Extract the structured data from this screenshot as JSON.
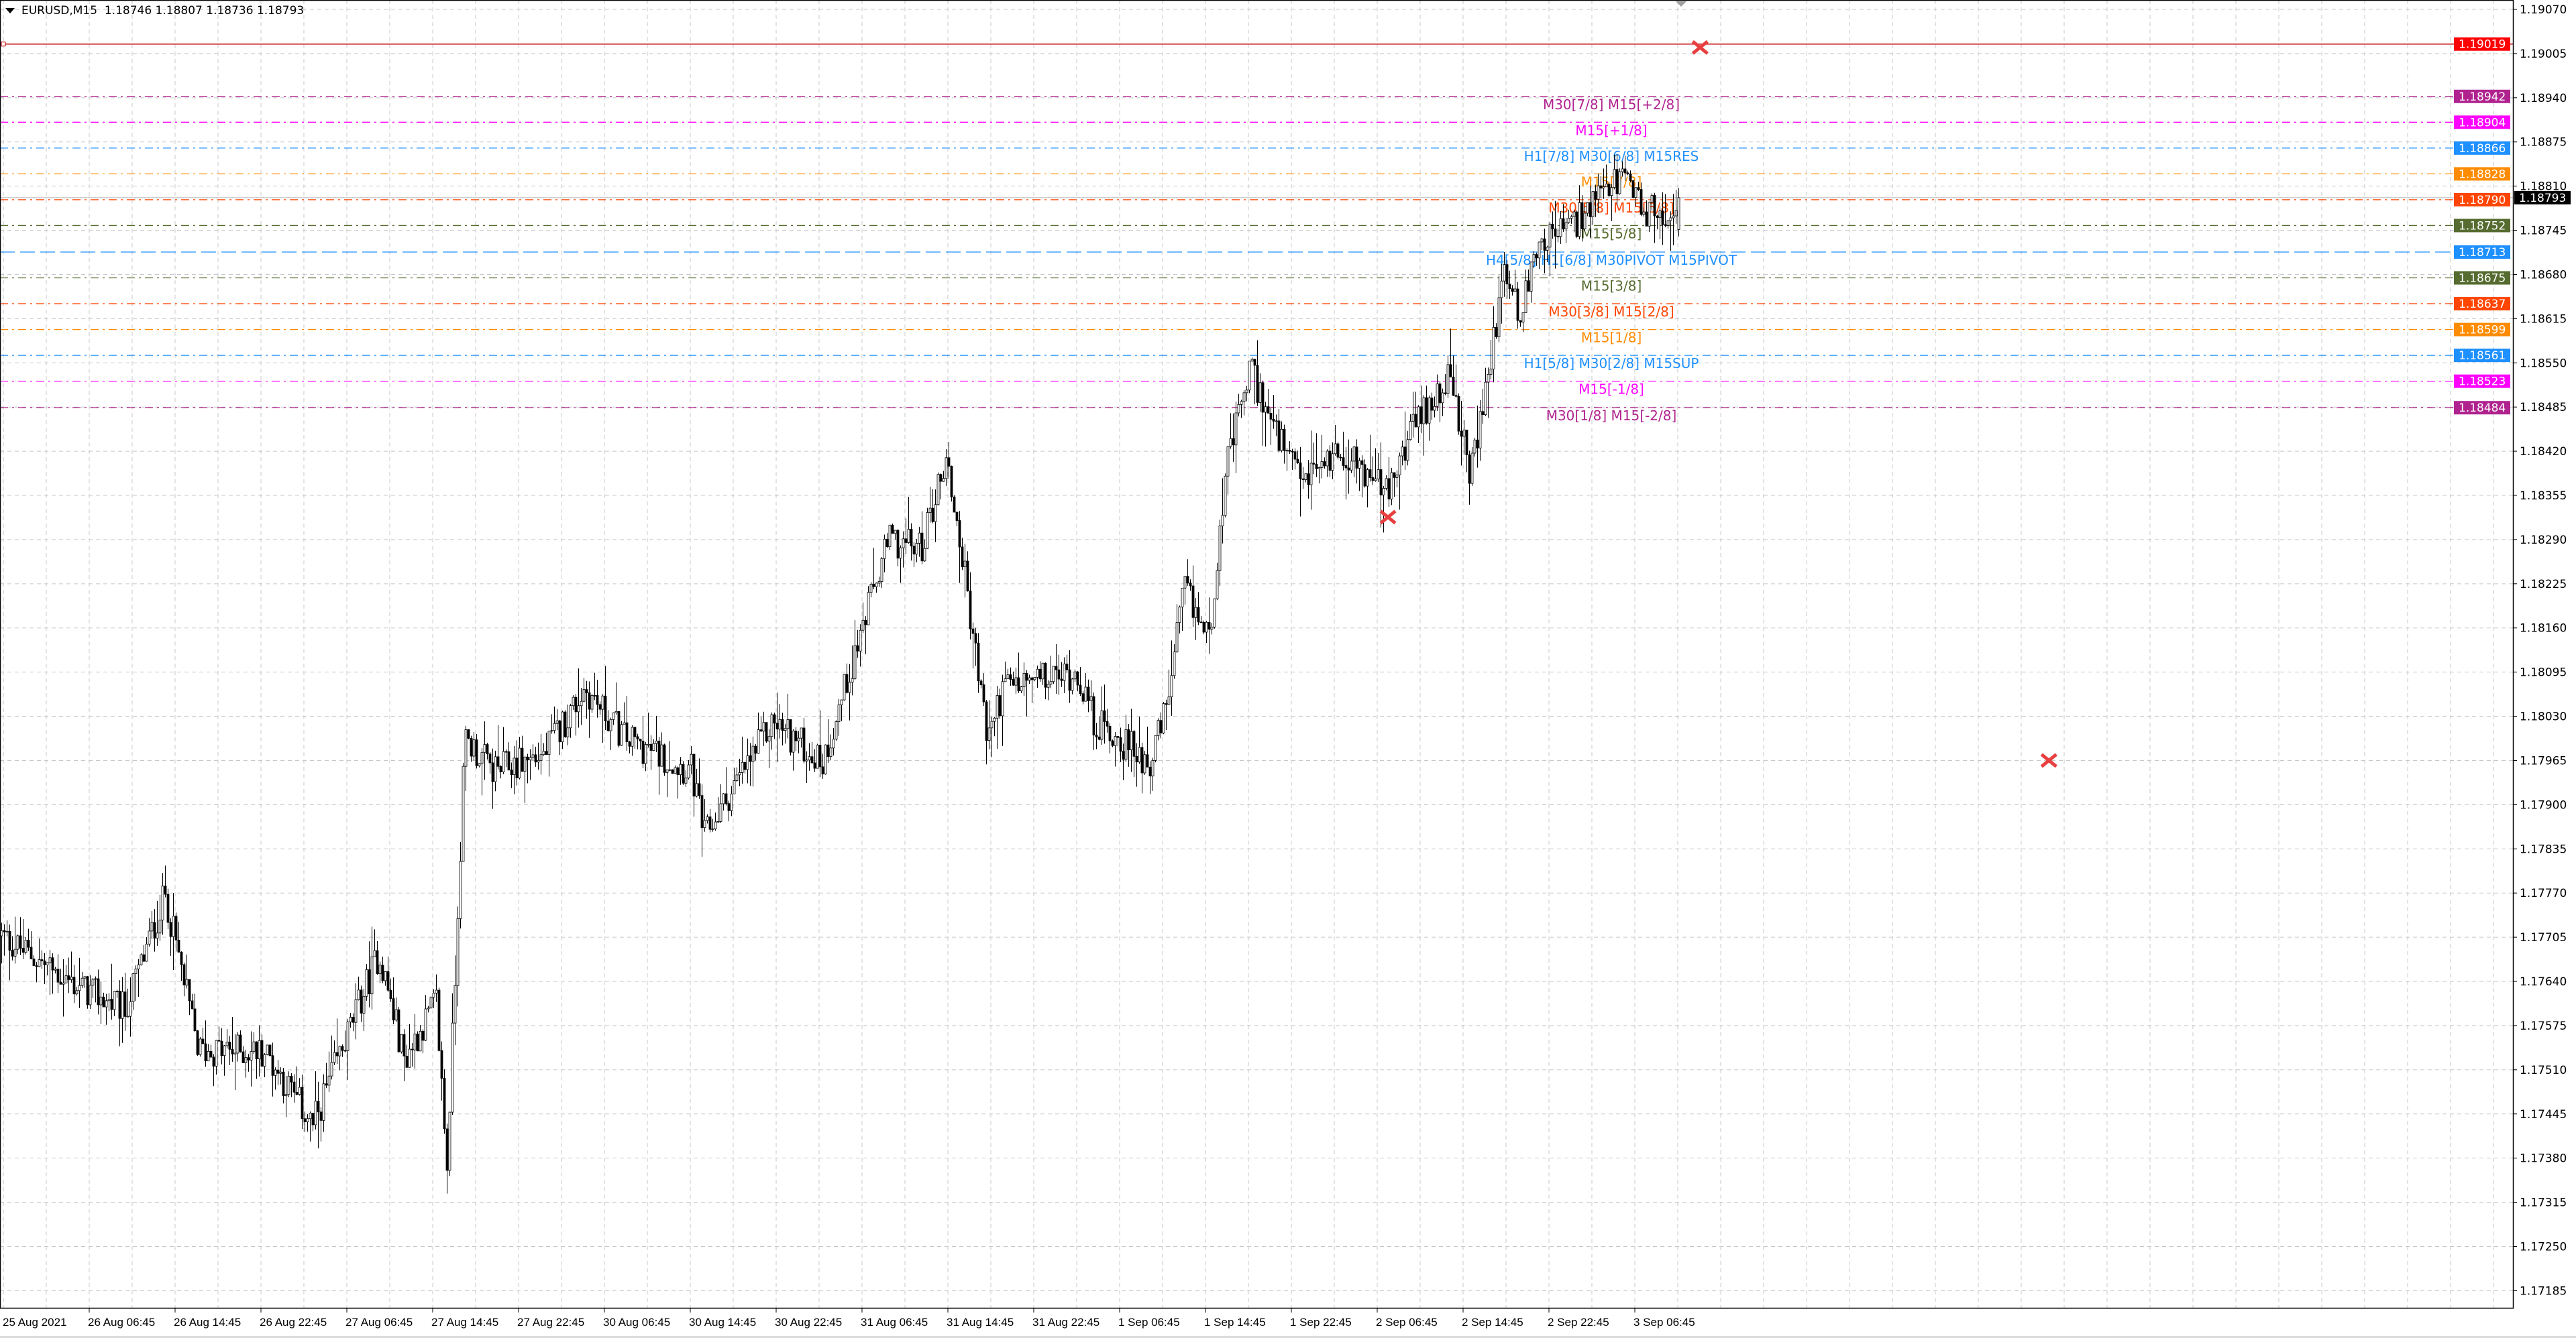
{
  "header": {
    "symbol_timeframe": "EURUSD,M15",
    "ohlc": "1.18746 1.18807 1.18736 1.18793"
  },
  "chart_data": {
    "type": "candlestick",
    "symbol": "EURUSD",
    "timeframe": "M15",
    "last_bar": {
      "open": 1.18746,
      "high": 1.18807,
      "low": 1.18736,
      "close": 1.18793
    },
    "ylim": [
      1.1715,
      1.19085
    ],
    "grid": true,
    "y_ticks": [
      "1.19070",
      "1.19005",
      "1.18940",
      "1.18875",
      "1.18810",
      "1.18745",
      "1.18680",
      "1.18615",
      "1.18550",
      "1.18485",
      "1.18420",
      "1.18355",
      "1.18290",
      "1.18225",
      "1.18160",
      "1.18095",
      "1.18030",
      "1.17965",
      "1.17900",
      "1.17835",
      "1.17770",
      "1.17705",
      "1.17640",
      "1.17575",
      "1.17510",
      "1.17445",
      "1.17380",
      "1.17315",
      "1.17250",
      "1.17185"
    ],
    "x_ticks": [
      "25 Aug 2021",
      "26 Aug 06:45",
      "26 Aug 14:45",
      "26 Aug 22:45",
      "27 Aug 06:45",
      "27 Aug 14:45",
      "27 Aug 22:45",
      "30 Aug 06:45",
      "30 Aug 14:45",
      "30 Aug 22:45",
      "31 Aug 06:45",
      "31 Aug 14:45",
      "31 Aug 22:45",
      "1 Sep 06:45",
      "1 Sep 14:45",
      "1 Sep 22:45",
      "2 Sep 06:45",
      "2 Sep 14:45",
      "2 Sep 22:45",
      "3 Sep 06:45"
    ],
    "price_path": [
      [
        "25 Aug 22:30",
        1.17707
      ],
      [
        "26 Aug 05:20",
        1.17635
      ],
      [
        "26 Aug 10:00",
        1.17598
      ],
      [
        "26 Aug 13:45",
        1.17768
      ],
      [
        "26 Aug 16:50",
        1.17538
      ],
      [
        "26 Aug 23:00",
        1.17538
      ],
      [
        "27 Aug 03:30",
        1.17429
      ],
      [
        "27 Aug 09:40",
        1.17683
      ],
      [
        "27 Aug 12:00",
        1.17526
      ],
      [
        "27 Aug 15:00",
        1.1761
      ],
      [
        "27 Aug 16:00",
        1.17368
      ],
      [
        "27 Aug 17:40",
        1.17998
      ],
      [
        "27 Aug 20:20",
        1.1795
      ],
      [
        "30 Aug 01:00",
        1.17974
      ],
      [
        "30 Aug 04:50",
        1.18071
      ],
      [
        "30 Aug 08:35",
        1.17998
      ],
      [
        "30 Aug 14:45",
        1.1795
      ],
      [
        "30 Aug 16:00",
        1.17853
      ],
      [
        "30 Aug 22:25",
        1.18023
      ],
      [
        "31 Aug 03:00",
        1.17962
      ],
      [
        "31 Aug 06:50",
        1.18168
      ],
      [
        "31 Aug 09:10",
        1.18289
      ],
      [
        "31 Aug 12:10",
        1.18277
      ],
      [
        "31 Aug 14:30",
        1.18411
      ],
      [
        "31 Aug 16:00",
        1.18265
      ],
      [
        "31 Aug 18:20",
        1.17998
      ],
      [
        "31 Aug 19:50",
        1.18071
      ],
      [
        "1 Sep 02:45",
        1.18095
      ],
      [
        "1 Sep 04:15",
        1.18023
      ],
      [
        "1 Sep 09:35",
        1.17962
      ],
      [
        "1 Sep 11:05",
        1.18047
      ],
      [
        "1 Sep 12:40",
        1.18217
      ],
      [
        "1 Sep 15:00",
        1.18144
      ],
      [
        "1 Sep 16:30",
        1.18386
      ],
      [
        "1 Sep 18:50",
        1.18544
      ],
      [
        "1 Sep 21:10",
        1.18447
      ],
      [
        "1 Sep 23:25",
        1.18374
      ],
      [
        "2 Sep 03:15",
        1.18423
      ],
      [
        "2 Sep 07:50",
        1.18357
      ],
      [
        "2 Sep 09:20",
        1.18435
      ],
      [
        "2 Sep 13:10",
        1.18532
      ],
      [
        "2 Sep 15:25",
        1.18386
      ],
      [
        "2 Sep 17:00",
        1.18532
      ],
      [
        "2 Sep 18:30",
        1.1869
      ],
      [
        "2 Sep 20:05",
        1.18617
      ],
      [
        "2 Sep 21:35",
        1.18731
      ],
      [
        "3 Sep 00:40",
        1.1875
      ],
      [
        "3 Sep 03:15",
        1.18787
      ],
      [
        "3 Sep 05:15",
        1.18823
      ],
      [
        "3 Sep 07:30",
        1.18774
      ],
      [
        "3 Sep 09:45",
        1.18767
      ],
      [
        "3 Sep 10:45",
        1.18793
      ]
    ],
    "current_price": {
      "value": 1.18793,
      "label": "1.18793",
      "color": "#000000"
    },
    "red_line": {
      "value": 1.19019,
      "label": "1.19019",
      "color": "#ff0000",
      "line_color": "#c00000"
    },
    "levels": [
      {
        "value": 1.18942,
        "price_label": "1.18942",
        "text": "M30[7/8] M15[+2/8]",
        "color": "#b0238f"
      },
      {
        "value": 1.18904,
        "price_label": "1.18904",
        "text": "M15[+1/8]",
        "color": "#ff00ff"
      },
      {
        "value": 1.18866,
        "price_label": "1.18866",
        "text": "H1[7/8] M30[6/8] M15RES",
        "color": "#1e90ff"
      },
      {
        "value": 1.18828,
        "price_label": "1.18828",
        "text": "M15[7/8]",
        "color": "#ff8c00"
      },
      {
        "value": 1.1879,
        "price_label": "1.18790",
        "text": "M30[5/8] M15[6/8]",
        "color": "#ff4500"
      },
      {
        "value": 1.18752,
        "price_label": "1.18752",
        "text": "M15[5/8]",
        "color": "#556b2f"
      },
      {
        "value": 1.18713,
        "price_label": "1.18713",
        "text": "H4[5/8] H1[6/8] M30PIVOT M15PIVOT",
        "color": "#1e90ff"
      },
      {
        "value": 1.18675,
        "price_label": "1.18675",
        "text": "M15[3/8]",
        "color": "#556b2f"
      },
      {
        "value": 1.18637,
        "price_label": "1.18637",
        "text": "M30[3/8] M15[2/8]",
        "color": "#ff4500"
      },
      {
        "value": 1.18599,
        "price_label": "1.18599",
        "text": "M15[1/8]",
        "color": "#ff8c00"
      },
      {
        "value": 1.18561,
        "price_label": "1.18561",
        "text": "H1[5/8] M30[2/8] M15SUP",
        "color": "#1e90ff"
      },
      {
        "value": 1.18523,
        "price_label": "1.18523",
        "text": "M15[-1/8]",
        "color": "#ff00ff"
      },
      {
        "value": 1.18484,
        "price_label": "1.18484",
        "text": "M30[1/8] M15[-2/8]",
        "color": "#b0238f"
      }
    ],
    "markers": [
      {
        "icon": "cross-icon",
        "time": "3 Sep 12:50",
        "value": 1.19014,
        "color": "#e84040"
      },
      {
        "icon": "cross-icon",
        "time": "2 Sep 07:45",
        "value": 1.18323,
        "color": "#e84040"
      },
      {
        "icon": "cross-icon",
        "time": "4 Sep 21:20",
        "value": 1.17965,
        "color": "#e84040"
      }
    ]
  }
}
